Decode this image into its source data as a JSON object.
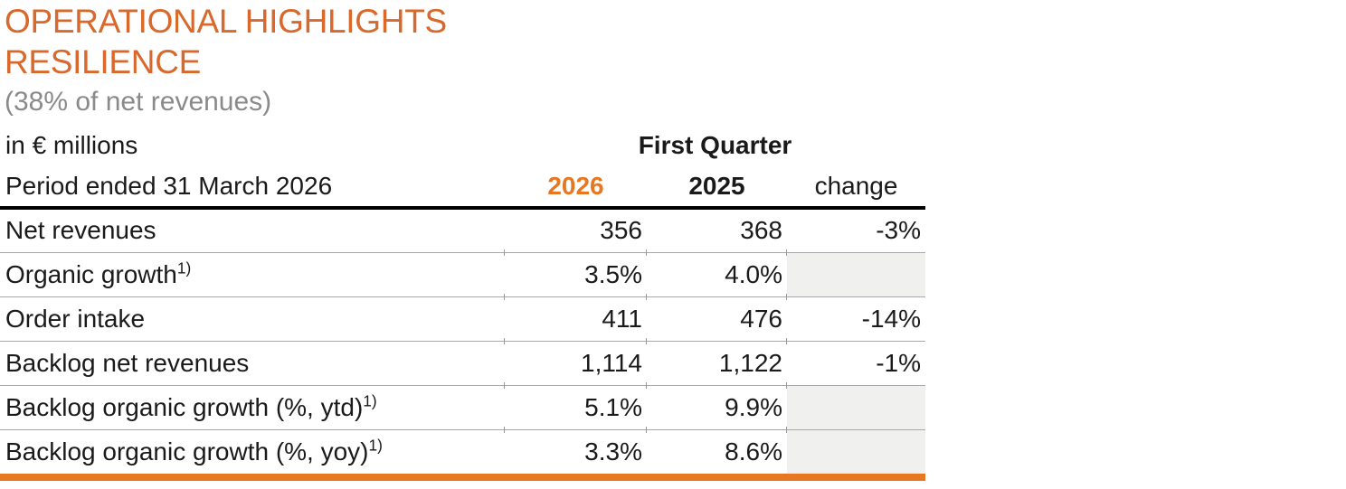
{
  "header": {
    "title_line1": "OPERATIONAL HIGHLIGHTS",
    "title_line2": "RESILIENCE",
    "subtitle": "(38% of net revenues)"
  },
  "table": {
    "unit_label": "in € millions",
    "group_header": "First Quarter",
    "period_label": "Period ended 31 March 2026",
    "columns": [
      "2026",
      "2025",
      "change"
    ],
    "rows": [
      {
        "label": "Net revenues",
        "sup": "",
        "y2026": "356",
        "y2025": "368",
        "change": "-3%",
        "change_shaded": false
      },
      {
        "label": "Organic growth",
        "sup": "1)",
        "y2026": "3.5%",
        "y2025": "4.0%",
        "change": "",
        "change_shaded": true
      },
      {
        "label": "Order intake",
        "sup": "",
        "y2026": "411",
        "y2025": "476",
        "change": "-14%",
        "change_shaded": false
      },
      {
        "label": "Backlog net revenues",
        "sup": "",
        "y2026": "1,114",
        "y2025": "1,122",
        "change": "-1%",
        "change_shaded": false
      },
      {
        "label": "Backlog organic growth (%, ytd)",
        "sup": "1)",
        "y2026": "5.1%",
        "y2025": "9.9%",
        "change": "",
        "change_shaded": true
      },
      {
        "label": "Backlog organic growth (%, yoy)",
        "sup": "1)",
        "y2026": "3.3%",
        "y2025": "8.6%",
        "change": "",
        "change_shaded": true
      }
    ]
  },
  "colors": {
    "title_orange": "#d8682c",
    "accent_orange": "#e87722",
    "subtitle_gray": "#8a8a8a",
    "shaded_cell": "#f0f0ef",
    "text": "#1a1a1a"
  }
}
